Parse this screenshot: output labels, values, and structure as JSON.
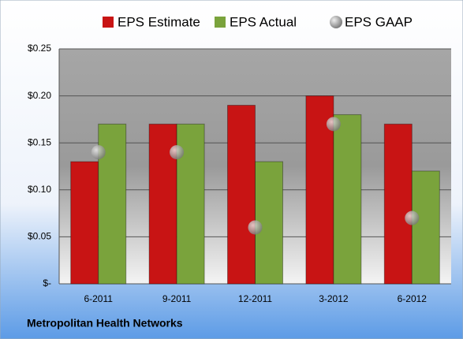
{
  "chart_data": {
    "type": "bar",
    "title": "Metropolitan Health Networks",
    "categories": [
      "6-2011",
      "9-2011",
      "12-2011",
      "3-2012",
      "6-2012"
    ],
    "series": [
      {
        "name": "EPS Estimate",
        "color": "#c81414",
        "values": [
          0.13,
          0.17,
          0.19,
          0.2,
          0.17
        ]
      },
      {
        "name": "EPS Actual",
        "color": "#7aa33c",
        "values": [
          0.17,
          0.17,
          0.13,
          0.18,
          0.12
        ]
      },
      {
        "name": "EPS GAAP",
        "color": "#a8a8a8",
        "type": "scatter",
        "values": [
          0.14,
          0.14,
          0.06,
          0.17,
          0.07
        ]
      }
    ],
    "ylim": [
      0,
      0.25
    ],
    "yticks": [
      {
        "value": 0,
        "label": "$-"
      },
      {
        "value": 0.05,
        "label": "$0.05"
      },
      {
        "value": 0.1,
        "label": "$0.10"
      },
      {
        "value": 0.15,
        "label": "$0.15"
      },
      {
        "value": 0.2,
        "label": "$0.20"
      },
      {
        "value": 0.25,
        "label": "$0.25"
      }
    ],
    "grid": true
  }
}
